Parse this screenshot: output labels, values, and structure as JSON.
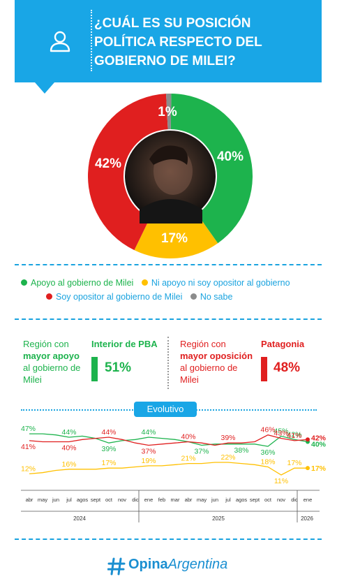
{
  "header": {
    "title": "¿CUÁL ES SU POSICIÓN POLÍTICA RESPECTO DEL GOBIERNO DE MILEI?",
    "icon": "user-icon"
  },
  "colors": {
    "green": "#1db34d",
    "yellow": "#ffc000",
    "red": "#e01f1f",
    "gray": "#8c8c8c",
    "blue": "#19a6e6"
  },
  "legend": [
    {
      "label": "Apoyo al gobierno de Milei",
      "color": "#1db34d"
    },
    {
      "label": "Ni apoyo ni soy opositor al gobierno",
      "color": "#ffc000"
    },
    {
      "label": "Soy opositor al gobierno de Milei",
      "color": "#e01f1f"
    },
    {
      "label": "No sabe",
      "color": "#8c8c8c"
    }
  ],
  "regions": {
    "support": {
      "label": "Región con mayor apoyo al gobierno de Milei",
      "label_pre": "Región con",
      "label_bold": "mayor apoyo",
      "label_post": "al gobierno de Milei",
      "name": "Interior de PBA",
      "value": "51%"
    },
    "opposition": {
      "label": "Región con mayor oposición al gobierno de Milei",
      "label_pre": "Región con",
      "label_bold": "mayor oposición",
      "label_post": "al gobierno de Milei",
      "name": "Patagonia",
      "value": "48%"
    }
  },
  "evolutivo_label": "Evolutivo",
  "brand": {
    "part1": "Opina",
    "part2": "Argentina"
  },
  "chart_data": [
    {
      "type": "pie",
      "categories": [
        "Apoyo al gobierno de Milei",
        "Ni apoyo ni soy opositor al gobierno",
        "Soy opositor al gobierno de Milei",
        "No sabe"
      ],
      "values": [
        40,
        17,
        42,
        1
      ],
      "labels": [
        "40%",
        "17%",
        "42%",
        "1%"
      ]
    },
    {
      "type": "line",
      "x": [
        "abr",
        "may",
        "jun",
        "jul",
        "agos",
        "sept",
        "oct",
        "nov",
        "dic",
        "ene",
        "feb",
        "mar",
        "abr",
        "may",
        "jun",
        "jul",
        "agos",
        "sept",
        "oct",
        "nov",
        "dic",
        "ene"
      ],
      "year_labels": [
        "2024",
        "2025",
        "2026"
      ],
      "series": [
        {
          "name": "Apoyo al gobierno de Milei",
          "values": [
            47,
            47,
            46,
            44,
            45,
            43,
            39,
            41,
            42,
            44,
            43,
            42,
            40,
            37,
            38,
            38,
            38,
            38,
            36,
            45,
            42,
            40
          ]
        },
        {
          "name": "Soy opositor al gobierno de Milei",
          "values": [
            41,
            40,
            40,
            40,
            42,
            43,
            44,
            42,
            39,
            37,
            38,
            39,
            40,
            39,
            37,
            39,
            39,
            40,
            46,
            43,
            41,
            42
          ]
        },
        {
          "name": "Ni apoyo ni soy opositor al gobierno",
          "values": [
            12,
            13,
            15,
            16,
            16,
            16,
            17,
            17,
            18,
            19,
            19,
            20,
            21,
            21,
            22,
            22,
            21,
            20,
            18,
            11,
            17,
            17
          ]
        }
      ],
      "data_labels": [
        {
          "series": 0,
          "index": 0,
          "text": "47%"
        },
        {
          "series": 0,
          "index": 3,
          "text": "44%"
        },
        {
          "series": 0,
          "index": 6,
          "text": "39%"
        },
        {
          "series": 0,
          "index": 9,
          "text": "44%"
        },
        {
          "series": 0,
          "index": 13,
          "text": "37%"
        },
        {
          "series": 0,
          "index": 16,
          "text": "38%"
        },
        {
          "series": 0,
          "index": 18,
          "text": "36%"
        },
        {
          "series": 0,
          "index": 19,
          "text": "45%"
        },
        {
          "series": 0,
          "index": 20,
          "text": "42%"
        },
        {
          "series": 0,
          "index": 21,
          "text": "40%"
        },
        {
          "series": 1,
          "index": 0,
          "text": "41%"
        },
        {
          "series": 1,
          "index": 3,
          "text": "40%"
        },
        {
          "series": 1,
          "index": 6,
          "text": "44%"
        },
        {
          "series": 1,
          "index": 9,
          "text": "37%"
        },
        {
          "series": 1,
          "index": 12,
          "text": "40%"
        },
        {
          "series": 1,
          "index": 15,
          "text": "39%"
        },
        {
          "series": 1,
          "index": 18,
          "text": "46%"
        },
        {
          "series": 1,
          "index": 19,
          "text": "43%"
        },
        {
          "series": 1,
          "index": 20,
          "text": "41%"
        },
        {
          "series": 1,
          "index": 21,
          "text": "42%"
        },
        {
          "series": 2,
          "index": 0,
          "text": "12%"
        },
        {
          "series": 2,
          "index": 3,
          "text": "16%"
        },
        {
          "series": 2,
          "index": 6,
          "text": "17%"
        },
        {
          "series": 2,
          "index": 9,
          "text": "19%"
        },
        {
          "series": 2,
          "index": 12,
          "text": "21%"
        },
        {
          "series": 2,
          "index": 15,
          "text": "22%"
        },
        {
          "series": 2,
          "index": 18,
          "text": "18%"
        },
        {
          "series": 2,
          "index": 19,
          "text": "11%"
        },
        {
          "series": 2,
          "index": 20,
          "text": "17%"
        },
        {
          "series": 2,
          "index": 21,
          "text": "17%"
        }
      ],
      "ylim": [
        0,
        55
      ]
    }
  ]
}
